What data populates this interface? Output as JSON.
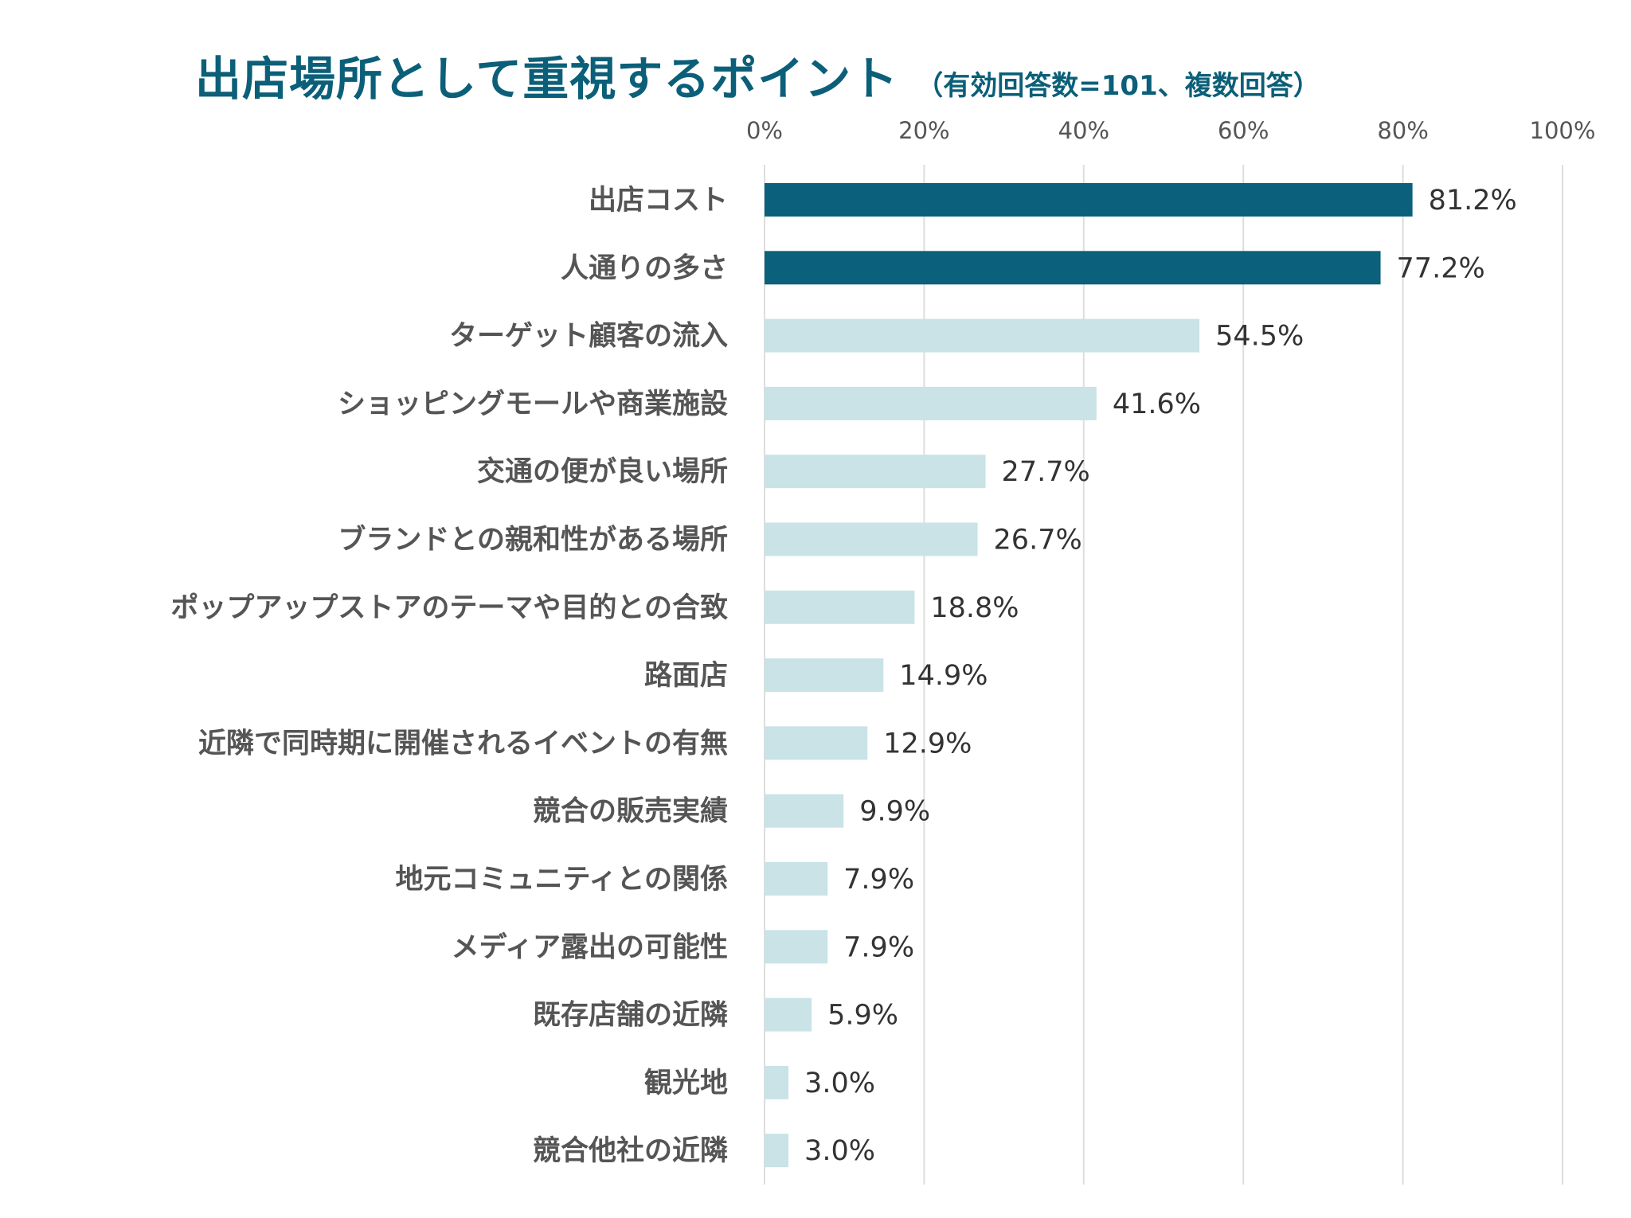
{
  "chart_data": {
    "type": "bar",
    "orientation": "horizontal",
    "title": "出店場所として重視するポイント",
    "subtitle": "（有効回答数=101、複数回答）",
    "xlabel": "",
    "ylabel": "",
    "xlim": [
      0,
      100
    ],
    "x_ticks": [
      "0%",
      "20%",
      "40%",
      "60%",
      "80%",
      "100%"
    ],
    "grid": true,
    "legend": "none",
    "categories": [
      "出店コスト",
      "人通りの多さ",
      "ターゲット顧客の流入",
      "ショッピングモールや商業施設",
      "交通の便が良い場所",
      "ブランドとの親和性がある場所",
      "ポップアップストアのテーマや目的との合致",
      "路面店",
      "近隣で同時期に開催されるイベントの有無",
      "競合の販売実績",
      "地元コミュニティとの関係",
      "メディア露出の可能性",
      "既存店舗の近隣",
      "観光地",
      "競合他社の近隣"
    ],
    "values": [
      81.2,
      77.2,
      54.5,
      41.6,
      27.7,
      26.7,
      18.8,
      14.9,
      12.9,
      9.9,
      7.9,
      7.9,
      5.9,
      3.0,
      3.0
    ],
    "value_labels": [
      "81.2%",
      "77.2%",
      "54.5%",
      "41.6%",
      "27.7%",
      "26.7%",
      "18.8%",
      "14.9%",
      "12.9%",
      "9.9%",
      "7.9%",
      "7.9%",
      "5.9%",
      "3.0%",
      "3.0%"
    ],
    "highlight_count": 2,
    "colors": {
      "highlight": "#0b617b",
      "normal": "#c9e3e7",
      "title": "#0b5f78",
      "grid": "#dddddd"
    }
  }
}
